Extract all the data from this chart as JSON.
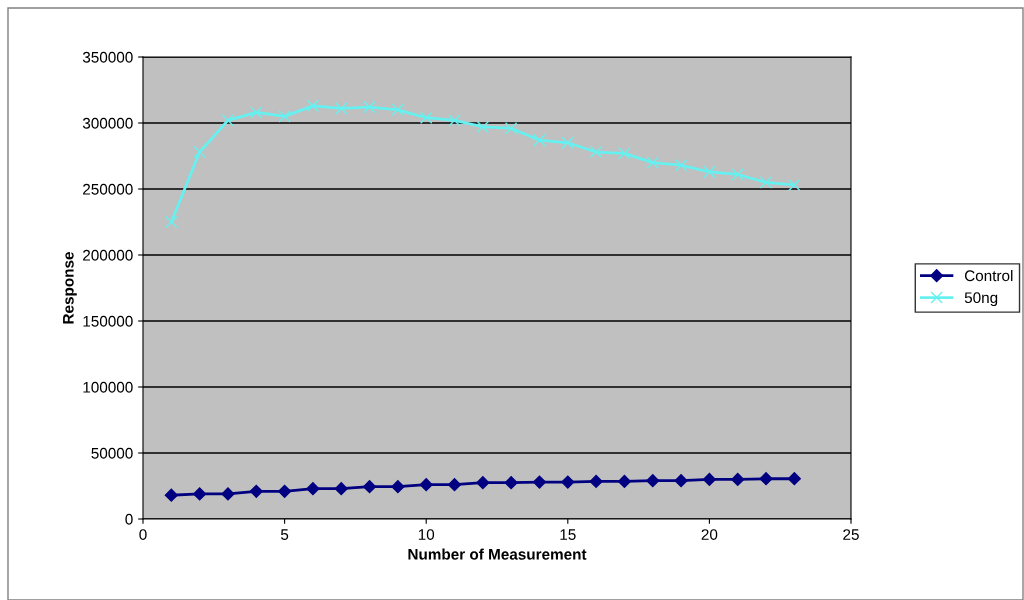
{
  "chart_data": {
    "type": "line",
    "xlabel": "Number of Measurement",
    "ylabel": "Response",
    "x": [
      1,
      2,
      3,
      4,
      5,
      6,
      7,
      8,
      9,
      10,
      11,
      12,
      13,
      14,
      15,
      16,
      17,
      18,
      19,
      20,
      21,
      22,
      23
    ],
    "series": [
      {
        "name": "Control",
        "color": "#000080",
        "marker": "diamond",
        "values": [
          18000,
          19000,
          19000,
          21000,
          21000,
          23000,
          23000,
          24500,
          24500,
          26000,
          26000,
          27500,
          27500,
          28000,
          28000,
          28500,
          28500,
          29000,
          29000,
          30000,
          30000,
          30500,
          30500
        ]
      },
      {
        "name": "50ng",
        "color": "#66f0f0",
        "marker": "cross",
        "values": [
          225000,
          278000,
          302000,
          308000,
          305000,
          313000,
          311000,
          312000,
          310000,
          304000,
          302000,
          297000,
          296000,
          287000,
          285000,
          278000,
          277000,
          270000,
          268000,
          263000,
          261000,
          255000,
          253000
        ]
      }
    ],
    "xlim": [
      0,
      25
    ],
    "xticks": [
      0,
      5,
      10,
      15,
      20,
      25
    ],
    "ylim": [
      0,
      350000
    ],
    "yticks": [
      0,
      50000,
      100000,
      150000,
      200000,
      250000,
      300000,
      350000
    ],
    "grid": "y",
    "legend": "right"
  }
}
